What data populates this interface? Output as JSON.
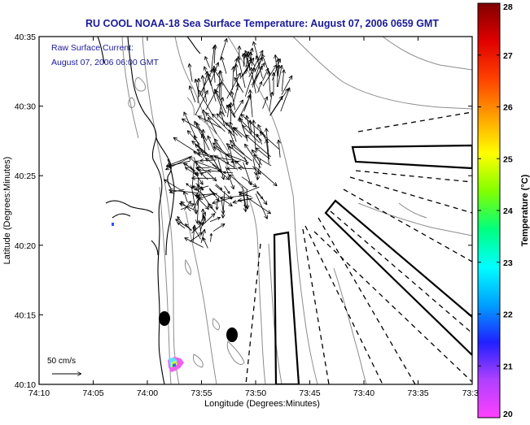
{
  "chart_data": {
    "type": "map",
    "title": "RU COOL  NOAA-18  Sea Surface Temperature:  August 07, 2006 0659 GMT",
    "annotations": [
      "Raw Surface Current:",
      "August 07, 2006 06:00 GMT"
    ],
    "scale_label": "50 cm/s",
    "xlabel": "Longitude (Degrees:Minutes)",
    "ylabel": "Latitude (Degrees:Minutes)",
    "x_ticks": [
      "74:10",
      "74:05",
      "74:00",
      "73:55",
      "73:50",
      "73:45",
      "73:40",
      "73:35",
      "73:3"
    ],
    "y_ticks": [
      "40:35",
      "40:30",
      "40:25",
      "40:20",
      "40:15",
      "40:10"
    ],
    "colorbar": {
      "label": "Temperature (°C)",
      "min": 20,
      "max": 28,
      "ticks": [
        "28",
        "27",
        "26",
        "25",
        "24",
        "23",
        "22",
        "21",
        "20"
      ],
      "colormap": [
        "#ff40ff",
        "#b040ff",
        "#2020ff",
        "#00a0ff",
        "#00ffff",
        "#00ff80",
        "#80ff00",
        "#ffff00",
        "#ffa000",
        "#ff4000",
        "#e00000",
        "#800000"
      ]
    },
    "colors": {
      "title": "#1a1a99",
      "annotation": "#1a1a99",
      "axes": "#000000"
    }
  }
}
